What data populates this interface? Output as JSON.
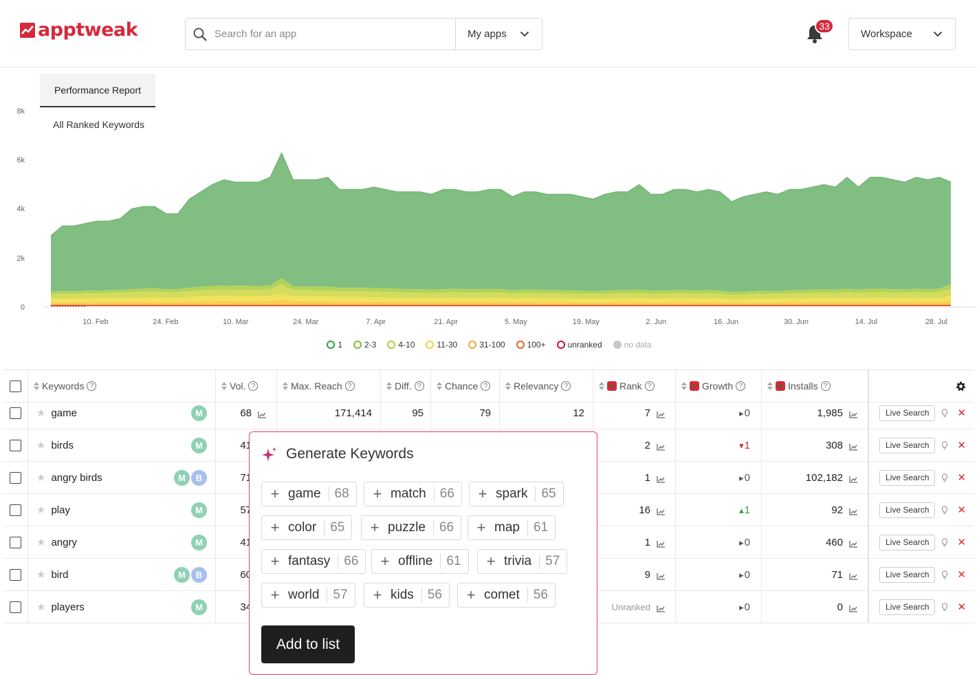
{
  "header": {
    "logo_text": "apptweak",
    "search_placeholder": "Search for an app",
    "myapps_label": "My apps",
    "notification_count": "33",
    "workspace_label": "Workspace"
  },
  "tab": {
    "label": "Performance Report"
  },
  "chart_data": {
    "type": "area",
    "title": "All Ranked Keywords",
    "ylim": [
      0,
      8000
    ],
    "y_ticks": [
      "0",
      "2k",
      "4k",
      "6k",
      "8k"
    ],
    "x_ticks": [
      "10. Feb",
      "24. Feb",
      "10. Mar",
      "24. Mar",
      "7. Apr",
      "21. Apr",
      "5. May",
      "19. May",
      "2. Jun",
      "16. Jun",
      "30. Jun",
      "14. Jul",
      "28. Jul"
    ],
    "stacked": true,
    "legend": [
      {
        "name": "1",
        "color": "#2e9e4d"
      },
      {
        "name": "2-3",
        "color": "#7dbb3b"
      },
      {
        "name": "4-10",
        "color": "#b7c93b"
      },
      {
        "name": "11-30",
        "color": "#f2d23c"
      },
      {
        "name": "31-100",
        "color": "#f0a83a"
      },
      {
        "name": "100+",
        "color": "#e8602c"
      },
      {
        "name": "unranked",
        "color": "#c8102e"
      },
      {
        "name": "no data",
        "color": "#c8c8c8"
      }
    ],
    "total": [
      2900,
      3300,
      3300,
      3400,
      3500,
      3500,
      3600,
      4000,
      4100,
      4100,
      3800,
      3800,
      4400,
      4700,
      5000,
      5200,
      5100,
      5100,
      5100,
      5300,
      6300,
      5200,
      5200,
      5200,
      5300,
      4800,
      4800,
      4800,
      4900,
      4800,
      4700,
      4700,
      4700,
      4600,
      4800,
      4800,
      4700,
      4700,
      4800,
      4800,
      4500,
      4700,
      4700,
      4600,
      4600,
      4600,
      4500,
      4400,
      4600,
      4700,
      4700,
      5000,
      4600,
      4600,
      4800,
      4800,
      4700,
      4800,
      4700,
      4300,
      4500,
      4600,
      4700,
      4600,
      4800,
      4800,
      4900,
      5000,
      4900,
      5300,
      4900,
      5300,
      5300,
      5200,
      5100,
      5300,
      5200,
      5300,
      5100
    ],
    "rank_2_3_top": [
      600,
      620,
      620,
      640,
      650,
      660,
      670,
      700,
      720,
      740,
      700,
      700,
      760,
      800,
      830,
      850,
      840,
      840,
      830,
      850,
      1150,
      820,
      820,
      800,
      810,
      760,
      760,
      760,
      750,
      730,
      720,
      700,
      700,
      690,
      700,
      720,
      700,
      700,
      710,
      700,
      650,
      680,
      680,
      660,
      660,
      650,
      640,
      620,
      640,
      660,
      660,
      680,
      640,
      640,
      660,
      660,
      650,
      660,
      640,
      580,
      600,
      620,
      640,
      620,
      660,
      660,
      680,
      700,
      680,
      720,
      680,
      720,
      720,
      700,
      690,
      720,
      700,
      720,
      900
    ],
    "rank_4_10_top": [
      480,
      500,
      500,
      520,
      530,
      540,
      550,
      570,
      590,
      600,
      570,
      570,
      620,
      650,
      680,
      690,
      680,
      680,
      670,
      690,
      900,
      660,
      660,
      650,
      650,
      610,
      610,
      610,
      600,
      590,
      580,
      560,
      560,
      550,
      560,
      580,
      560,
      560,
      570,
      560,
      520,
      540,
      540,
      530,
      530,
      520,
      510,
      500,
      510,
      530,
      530,
      540,
      510,
      510,
      530,
      530,
      520,
      530,
      510,
      460,
      480,
      500,
      510,
      500,
      530,
      530,
      540,
      560,
      540,
      580,
      540,
      580,
      580,
      560,
      550,
      580,
      560,
      580,
      700
    ],
    "rank_11_30_top": [
      300,
      310,
      310,
      320,
      330,
      330,
      340,
      350,
      360,
      370,
      350,
      350,
      380,
      400,
      410,
      420,
      410,
      410,
      410,
      420,
      520,
      400,
      400,
      400,
      400,
      370,
      370,
      370,
      360,
      360,
      350,
      340,
      340,
      330,
      340,
      350,
      340,
      340,
      350,
      340,
      320,
      330,
      330,
      320,
      320,
      320,
      310,
      300,
      310,
      320,
      320,
      330,
      310,
      310,
      320,
      320,
      310,
      320,
      310,
      280,
      290,
      300,
      310,
      300,
      320,
      320,
      330,
      340,
      330,
      350,
      330,
      350,
      350,
      340,
      330,
      350,
      340,
      350,
      420
    ],
    "rank_31_100_top": [
      150,
      150,
      150,
      160,
      160,
      160,
      170,
      170,
      180,
      180,
      170,
      170,
      190,
      200,
      200,
      210,
      200,
      200,
      200,
      210,
      260,
      200,
      200,
      200,
      200,
      180,
      180,
      180,
      180,
      180,
      170,
      170,
      170,
      160,
      170,
      170,
      170,
      170,
      170,
      170,
      160,
      160,
      160,
      160,
      160,
      160,
      150,
      150,
      150,
      160,
      160,
      160,
      150,
      150,
      160,
      160,
      150,
      160,
      150,
      140,
      140,
      150,
      150,
      150,
      160,
      160,
      160,
      170,
      160,
      170,
      160,
      170,
      170,
      170,
      160,
      170,
      170,
      170,
      200
    ]
  },
  "table": {
    "headers": {
      "keywords": "Keywords",
      "vol": "Vol.",
      "max_reach": "Max. Reach",
      "diff": "Diff.",
      "chance": "Chance",
      "relevancy": "Relevancy",
      "rank": "Rank",
      "growth": "Growth",
      "installs": "Installs"
    },
    "live_search_label": "Live Search",
    "rows": [
      {
        "keyword": "game",
        "avatars": [
          "M"
        ],
        "vol": "68",
        "max_reach": "171,414",
        "diff": "95",
        "chance": "79",
        "relevancy": "12",
        "rank": "7",
        "growth": "0",
        "growth_dir": "flat",
        "installs": "1,985"
      },
      {
        "keyword": "birds",
        "avatars": [
          "M"
        ],
        "vol": "41",
        "max_reach": "",
        "diff": "",
        "chance": "",
        "relevancy": "",
        "rank": "2",
        "growth": "1",
        "growth_dir": "down",
        "installs": "308"
      },
      {
        "keyword": "angry birds",
        "avatars": [
          "M",
          "B"
        ],
        "vol": "71",
        "max_reach": "",
        "diff": "",
        "chance": "",
        "relevancy": "",
        "rank": "1",
        "growth": "0",
        "growth_dir": "flat",
        "installs": "102,182"
      },
      {
        "keyword": "play",
        "avatars": [
          "M"
        ],
        "vol": "57",
        "max_reach": "",
        "diff": "",
        "chance": "",
        "relevancy": "",
        "rank": "16",
        "growth": "1",
        "growth_dir": "up",
        "installs": "92"
      },
      {
        "keyword": "angry",
        "avatars": [
          "M"
        ],
        "vol": "41",
        "max_reach": "",
        "diff": "",
        "chance": "",
        "relevancy": "",
        "rank": "1",
        "growth": "0",
        "growth_dir": "flat",
        "installs": "460"
      },
      {
        "keyword": "bird",
        "avatars": [
          "M",
          "B"
        ],
        "vol": "60",
        "max_reach": "",
        "diff": "",
        "chance": "",
        "relevancy": "",
        "rank": "9",
        "growth": "0",
        "growth_dir": "flat",
        "installs": "71"
      },
      {
        "keyword": "players",
        "avatars": [
          "M"
        ],
        "vol": "34",
        "max_reach": "",
        "diff": "",
        "chance": "",
        "relevancy": "",
        "rank": "Unranked",
        "growth": "0",
        "growth_dir": "flat",
        "installs": "0"
      }
    ]
  },
  "popup": {
    "title": "Generate Keywords",
    "chips": [
      {
        "word": "game",
        "score": "68"
      },
      {
        "word": "match",
        "score": "66"
      },
      {
        "word": "spark",
        "score": "65"
      },
      {
        "word": "color",
        "score": "65"
      },
      {
        "word": "puzzle",
        "score": "66"
      },
      {
        "word": "map",
        "score": "61"
      },
      {
        "word": "fantasy",
        "score": "66"
      },
      {
        "word": "offline",
        "score": "61"
      },
      {
        "word": "trivia",
        "score": "57"
      },
      {
        "word": "world",
        "score": "57"
      },
      {
        "word": "kids",
        "score": "56"
      },
      {
        "word": "comet",
        "score": "56"
      }
    ],
    "add_button_label": "Add to list"
  }
}
